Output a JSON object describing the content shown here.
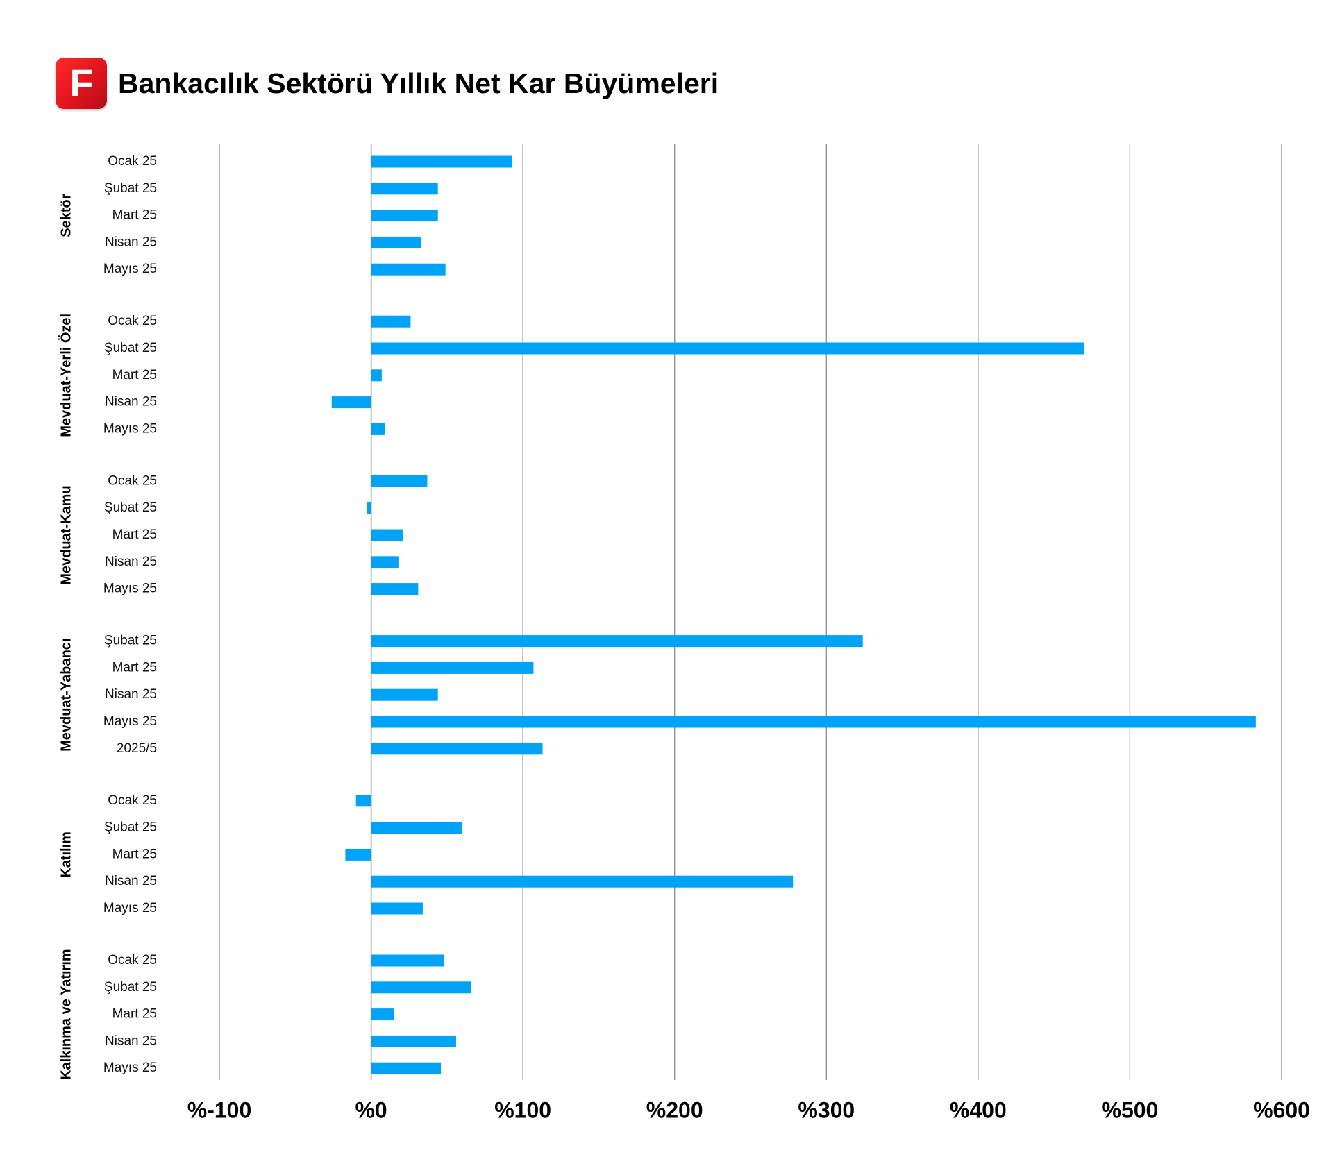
{
  "header": {
    "title": "Bankacılık Sektörü Yıllık Net Kar Büyümeleri",
    "logo_text": "F",
    "logo_color": "#e31b23"
  },
  "chart_data": {
    "type": "bar",
    "orientation": "horizontal",
    "title": "Bankacılık Sektörü Yıllık Net Kar Büyümeleri",
    "xlim": [
      -100,
      600
    ],
    "xticks": [
      -100,
      0,
      100,
      200,
      300,
      400,
      500,
      600
    ],
    "xtick_labels": [
      "%-100",
      "%0",
      "%100",
      "%200",
      "%300",
      "%400",
      "%500",
      "%600"
    ],
    "grid": "vertical",
    "bar_color": "#00a3f5",
    "groups": [
      {
        "name": "Sektör",
        "categories": [
          "Ocak 25",
          "Şubat 25",
          "Mart 25",
          "Nisan 25",
          "Mayıs 25"
        ],
        "values": [
          93,
          44,
          44,
          33,
          49
        ]
      },
      {
        "name": "Mevduat-Yerli Özel",
        "categories": [
          "Ocak 25",
          "Şubat 25",
          "Mart 25",
          "Nisan 25",
          "Mayıs 25"
        ],
        "values": [
          26,
          470,
          7,
          -26,
          9
        ]
      },
      {
        "name": "Mevduat-Kamu",
        "categories": [
          "Ocak 25",
          "Şubat 25",
          "Mart 25",
          "Nisan 25",
          "Mayıs 25"
        ],
        "values": [
          37,
          -3,
          21,
          18,
          31
        ]
      },
      {
        "name": "Mevduat-Yabancı",
        "categories": [
          "Şubat 25",
          "Mart 25",
          "Nisan 25",
          "Mayıs 25",
          "2025/5"
        ],
        "values": [
          324,
          107,
          44,
          583,
          113
        ]
      },
      {
        "name": "Katılım",
        "categories": [
          "Ocak 25",
          "Şubat 25",
          "Mart 25",
          "Nisan 25",
          "Mayıs 25"
        ],
        "values": [
          -10,
          60,
          -17,
          278,
          34
        ]
      },
      {
        "name": "Kalkınma ve Yatırım",
        "categories": [
          "Ocak 25",
          "Şubat 25",
          "Mart 25",
          "Nisan 25",
          "Mayıs 25"
        ],
        "values": [
          48,
          66,
          15,
          56,
          46
        ]
      }
    ]
  }
}
